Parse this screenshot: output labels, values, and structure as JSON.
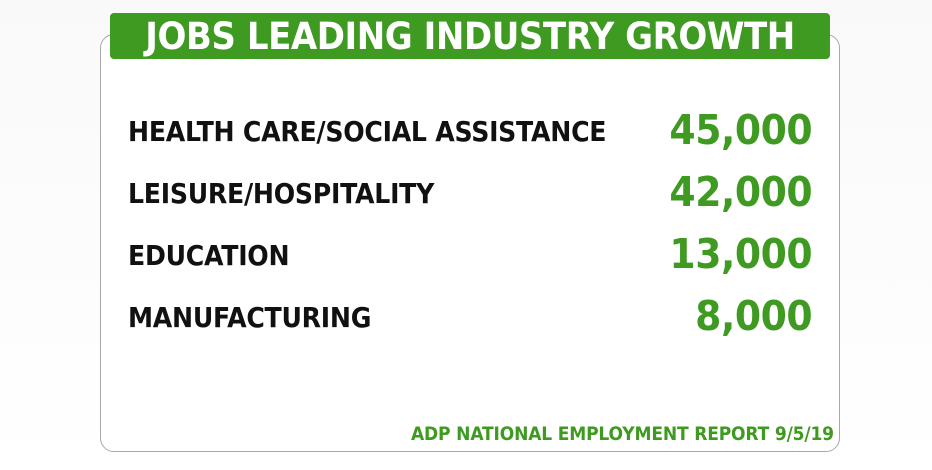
{
  "colors": {
    "accent_green": "#3f9a21",
    "label_text": "#111111",
    "card_border": "#a8a8a8"
  },
  "header": {
    "title": "JOBS LEADING INDUSTRY GROWTH"
  },
  "chart_data": {
    "type": "table",
    "title": "JOBS LEADING INDUSTRY GROWTH",
    "rows": [
      {
        "category": "HEALTH CARE/SOCIAL ASSISTANCE",
        "value": 45000,
        "value_label": "45,000"
      },
      {
        "category": "LEISURE/HOSPITALITY",
        "value": 42000,
        "value_label": "42,000"
      },
      {
        "category": "EDUCATION",
        "value": 13000,
        "value_label": "13,000"
      },
      {
        "category": "MANUFACTURING",
        "value": 8000,
        "value_label": "8,000"
      }
    ],
    "source": "ADP NATIONAL EMPLOYMENT REPORT 9/5/19"
  }
}
